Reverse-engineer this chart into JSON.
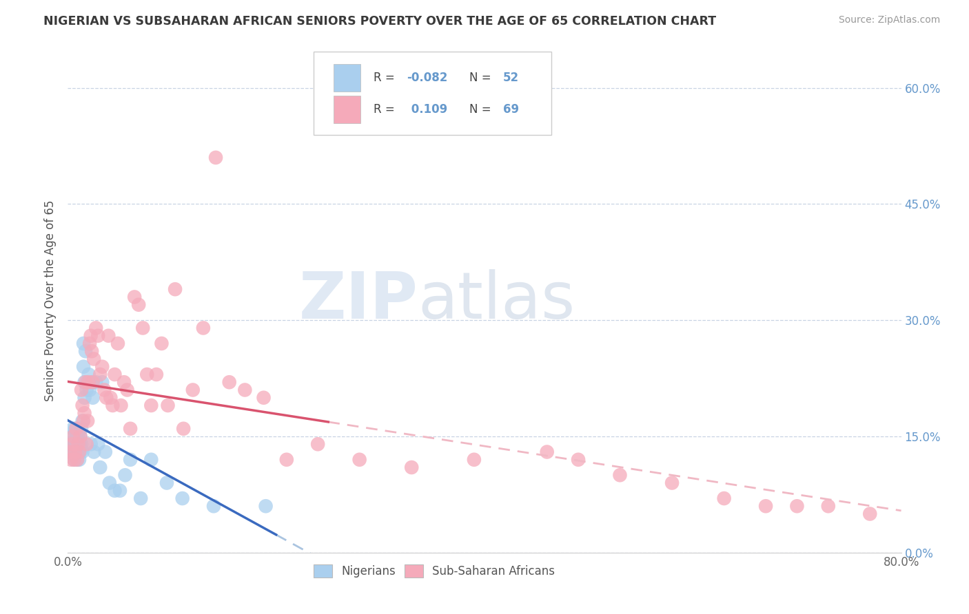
{
  "title": "NIGERIAN VS SUBSAHARAN AFRICAN SENIORS POVERTY OVER THE AGE OF 65 CORRELATION CHART",
  "source": "Source: ZipAtlas.com",
  "ylabel": "Seniors Poverty Over the Age of 65",
  "xlim": [
    0.0,
    0.8
  ],
  "ylim": [
    -0.01,
    0.65
  ],
  "plot_ylim": [
    0.0,
    0.65
  ],
  "xtick_vals": [
    0.0,
    0.8
  ],
  "xtick_labels": [
    "0.0%",
    "80.0%"
  ],
  "ytick_vals": [
    0.0,
    0.15,
    0.3,
    0.45,
    0.6
  ],
  "ytick_labels": [
    "0.0%",
    "15.0%",
    "30.0%",
    "45.0%",
    "60.0%"
  ],
  "watermark_part1": "ZIP",
  "watermark_part2": "atlas",
  "nigerian_color": "#aacfee",
  "subsaharan_color": "#f5aaba",
  "nigerian_line_color": "#3a6abf",
  "subsaharan_line_color": "#d9536e",
  "nigerian_dash_color": "#aac4e0",
  "subsaharan_dash_color": "#f0b8c4",
  "background_color": "#ffffff",
  "grid_color": "#c8d4e4",
  "title_color": "#3a3a3a",
  "right_axis_color": "#6699cc",
  "legend_r1_val": "-0.082",
  "legend_n1_val": "52",
  "legend_r2_val": "0.109",
  "legend_n2_val": "69",
  "nigerian_x": [
    0.002,
    0.003,
    0.004,
    0.005,
    0.005,
    0.006,
    0.006,
    0.007,
    0.007,
    0.008,
    0.008,
    0.009,
    0.009,
    0.01,
    0.01,
    0.011,
    0.011,
    0.012,
    0.012,
    0.013,
    0.013,
    0.014,
    0.014,
    0.015,
    0.015,
    0.016,
    0.016,
    0.017,
    0.018,
    0.019,
    0.02,
    0.021,
    0.022,
    0.023,
    0.024,
    0.025,
    0.027,
    0.029,
    0.031,
    0.033,
    0.036,
    0.04,
    0.045,
    0.05,
    0.055,
    0.06,
    0.07,
    0.08,
    0.095,
    0.11,
    0.14,
    0.19
  ],
  "nigerian_y": [
    0.14,
    0.13,
    0.15,
    0.16,
    0.14,
    0.13,
    0.12,
    0.14,
    0.16,
    0.13,
    0.15,
    0.12,
    0.14,
    0.13,
    0.15,
    0.14,
    0.12,
    0.13,
    0.15,
    0.14,
    0.16,
    0.17,
    0.13,
    0.27,
    0.24,
    0.22,
    0.2,
    0.26,
    0.21,
    0.22,
    0.23,
    0.21,
    0.14,
    0.22,
    0.2,
    0.13,
    0.22,
    0.14,
    0.11,
    0.22,
    0.13,
    0.09,
    0.08,
    0.08,
    0.1,
    0.12,
    0.07,
    0.12,
    0.09,
    0.07,
    0.06,
    0.06
  ],
  "subsaharan_x": [
    0.002,
    0.003,
    0.004,
    0.005,
    0.006,
    0.007,
    0.008,
    0.009,
    0.01,
    0.011,
    0.012,
    0.013,
    0.014,
    0.015,
    0.016,
    0.017,
    0.018,
    0.019,
    0.02,
    0.021,
    0.022,
    0.023,
    0.024,
    0.025,
    0.027,
    0.029,
    0.031,
    0.033,
    0.035,
    0.037,
    0.039,
    0.041,
    0.043,
    0.045,
    0.048,
    0.051,
    0.054,
    0.057,
    0.06,
    0.064,
    0.068,
    0.072,
    0.076,
    0.08,
    0.085,
    0.09,
    0.096,
    0.103,
    0.111,
    0.12,
    0.13,
    0.142,
    0.155,
    0.17,
    0.188,
    0.21,
    0.24,
    0.28,
    0.33,
    0.39,
    0.46,
    0.49,
    0.53,
    0.58,
    0.63,
    0.67,
    0.7,
    0.73,
    0.77
  ],
  "subsaharan_y": [
    0.13,
    0.12,
    0.14,
    0.15,
    0.12,
    0.13,
    0.16,
    0.12,
    0.14,
    0.13,
    0.15,
    0.21,
    0.19,
    0.17,
    0.18,
    0.22,
    0.14,
    0.17,
    0.22,
    0.27,
    0.28,
    0.26,
    0.22,
    0.25,
    0.29,
    0.28,
    0.23,
    0.24,
    0.21,
    0.2,
    0.28,
    0.2,
    0.19,
    0.23,
    0.27,
    0.19,
    0.22,
    0.21,
    0.16,
    0.33,
    0.32,
    0.29,
    0.23,
    0.19,
    0.23,
    0.27,
    0.19,
    0.34,
    0.16,
    0.21,
    0.29,
    0.51,
    0.22,
    0.21,
    0.2,
    0.12,
    0.14,
    0.12,
    0.11,
    0.12,
    0.13,
    0.12,
    0.1,
    0.09,
    0.07,
    0.06,
    0.06,
    0.06,
    0.05
  ]
}
